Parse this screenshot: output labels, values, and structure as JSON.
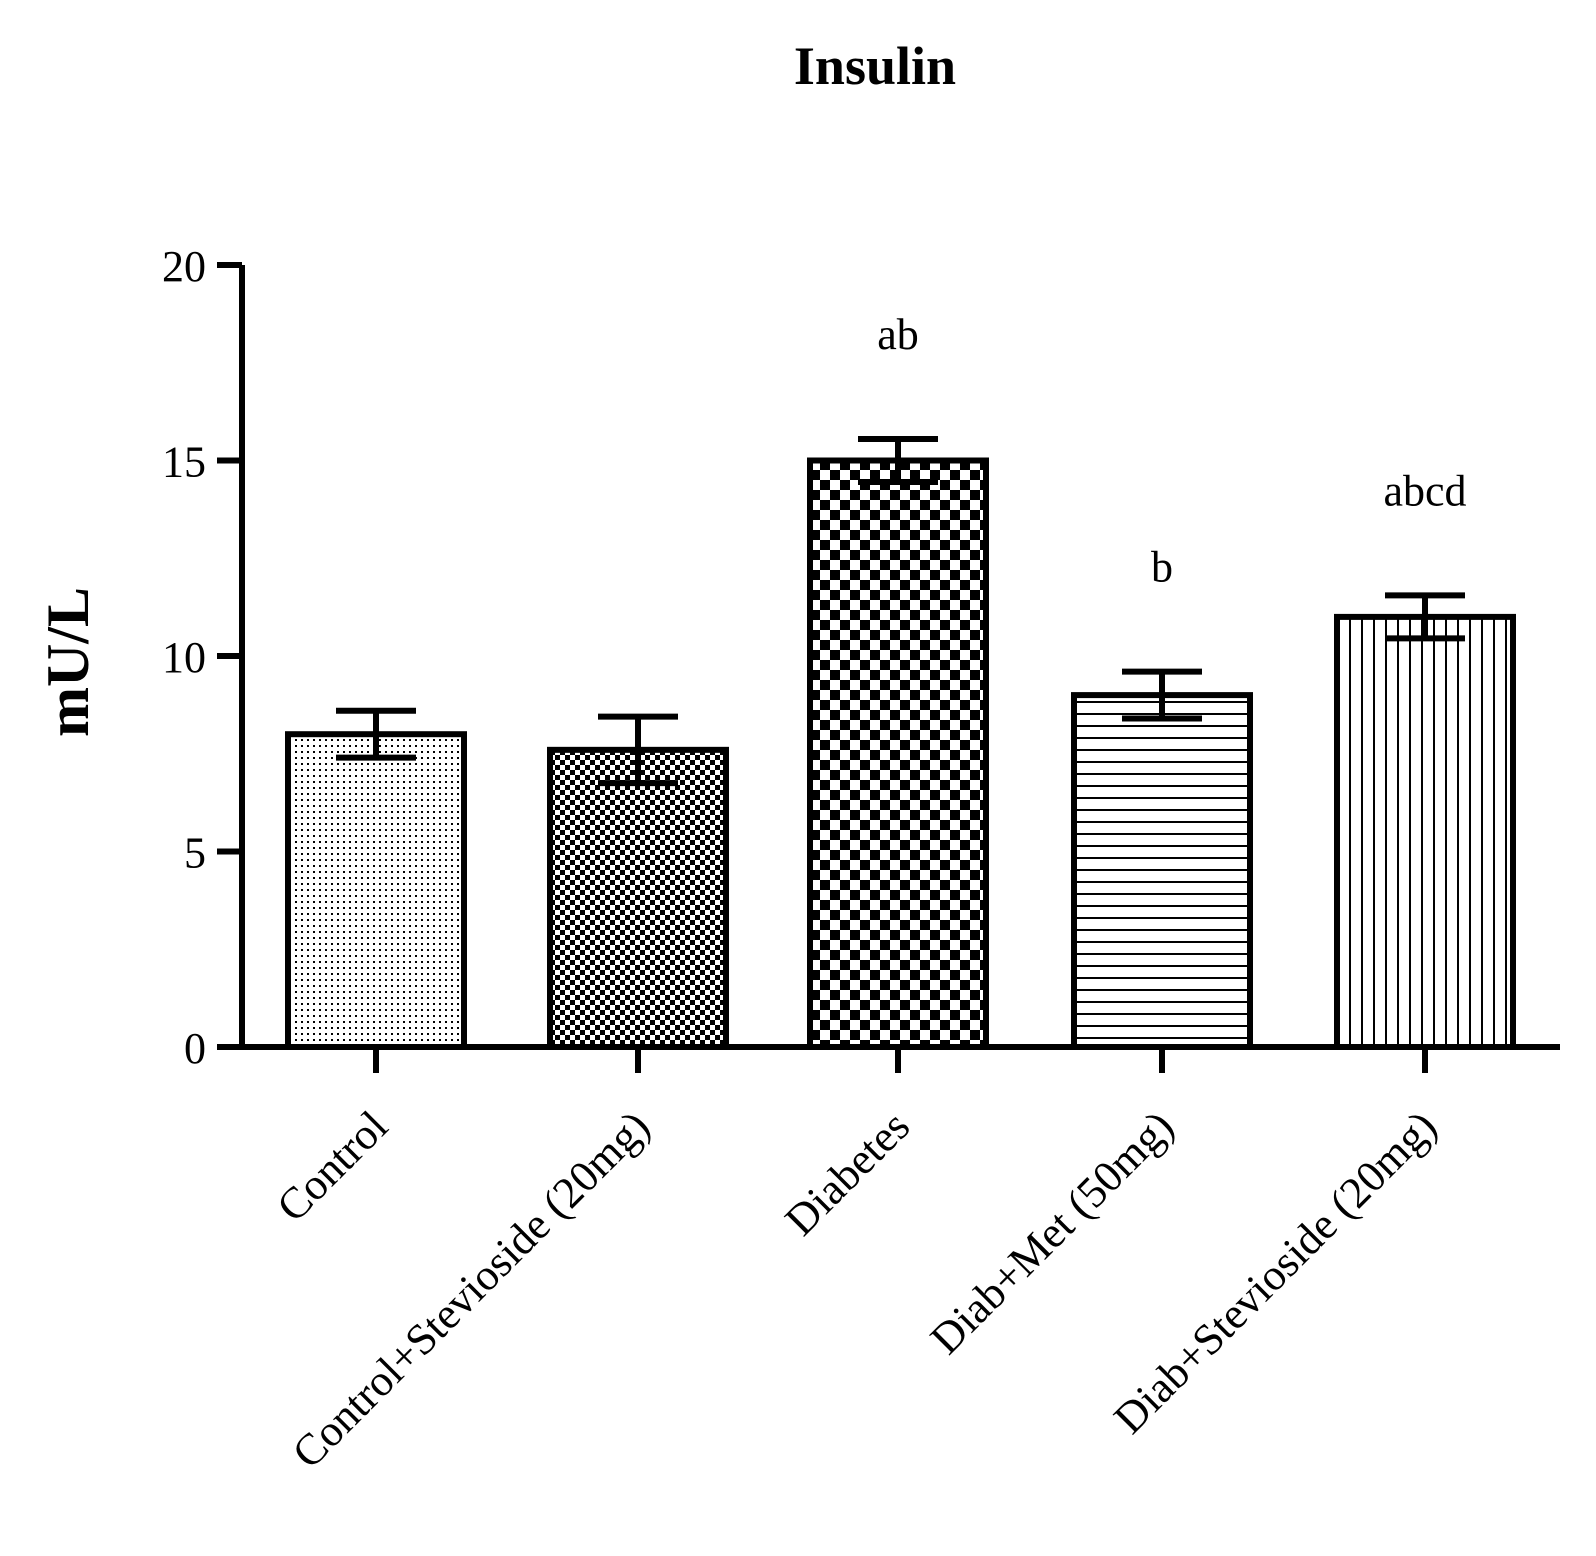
{
  "chart_data": {
    "type": "bar",
    "title": "Insulin",
    "xlabel": "",
    "ylabel": "mU/L",
    "ylim": [
      0,
      20
    ],
    "yticks": [
      0,
      5,
      10,
      15,
      20
    ],
    "grid": false,
    "categories": [
      "Control",
      "Control+Stevioside (20mg)",
      "Diabetes",
      "Diab+Met (50mg)",
      "Diab+Stevioside (20mg)"
    ],
    "values": [
      8.0,
      7.6,
      15.0,
      9.0,
      11.0
    ],
    "errors": [
      0.6,
      0.85,
      0.55,
      0.6,
      0.55
    ],
    "patterns": [
      "fine-dots",
      "fine-checker",
      "coarse-checker",
      "horizontal-lines",
      "vertical-lines"
    ],
    "annotations": [
      "",
      "",
      "ab",
      "b",
      "abcd"
    ]
  }
}
